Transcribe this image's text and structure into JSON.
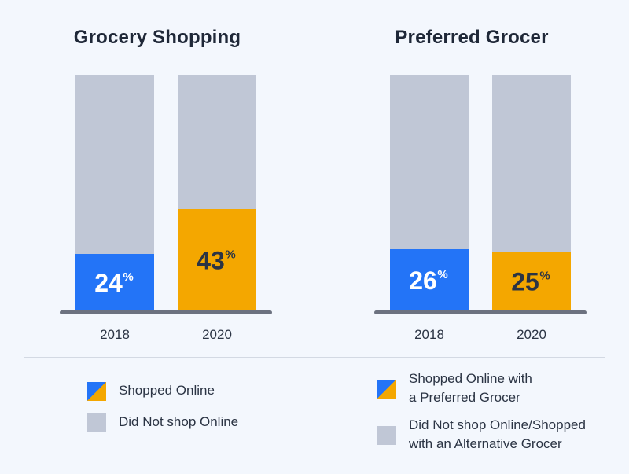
{
  "colors": {
    "background": "#f3f7fd",
    "gray": "#c0c7d6",
    "blue": "#2374f7",
    "orange": "#f4a700",
    "baseline": "#6c7280"
  },
  "chart_data": [
    {
      "type": "bar",
      "stacked": true,
      "title": "Grocery Shopping",
      "categories": [
        "2018",
        "2020"
      ],
      "series": [
        {
          "name": "Shopped Online",
          "values": [
            24,
            43
          ],
          "colors": [
            "#2374f7",
            "#f4a700"
          ]
        },
        {
          "name": "Did Not shop Online",
          "values": [
            76,
            57
          ],
          "color": "#c0c7d6"
        }
      ],
      "data_labels": [
        "24",
        "43"
      ],
      "unit_suffix": "%",
      "ylim": [
        0,
        100
      ],
      "grid": false
    },
    {
      "type": "bar",
      "stacked": true,
      "title": "Preferred Grocer",
      "categories": [
        "2018",
        "2020"
      ],
      "series": [
        {
          "name": "Shopped Online with a Preferred Grocer",
          "values": [
            26,
            25
          ],
          "colors": [
            "#2374f7",
            "#f4a700"
          ]
        },
        {
          "name": "Did Not shop Online/Shopped with an Alternative Grocer",
          "values": [
            74,
            75
          ],
          "color": "#c0c7d6"
        }
      ],
      "data_labels": [
        "26",
        "25"
      ],
      "unit_suffix": "%",
      "ylim": [
        0,
        100
      ],
      "grid": false
    }
  ],
  "legend_left": [
    {
      "swatch": "split",
      "lines": [
        "Shopped Online"
      ]
    },
    {
      "swatch": "gray",
      "lines": [
        "Did Not shop Online"
      ]
    }
  ],
  "legend_right": [
    {
      "swatch": "split",
      "lines": [
        "Shopped Online with",
        "a Preferred Grocer"
      ]
    },
    {
      "swatch": "gray",
      "lines": [
        "Did Not shop Online/Shopped",
        "with an Alternative Grocer"
      ]
    }
  ]
}
